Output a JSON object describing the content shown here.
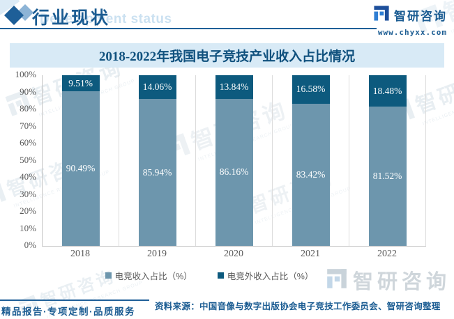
{
  "header": {
    "title": "行业现状",
    "subtitle_watermark": "Development status",
    "brand": {
      "name": "智研咨询",
      "url": "www.chyxx.com"
    }
  },
  "chart": {
    "title": "2018-2022年我国电子竞技产业收入占比情况"
  },
  "chart_data": {
    "type": "bar",
    "stacked": true,
    "title": "2018-2022年我国电子竞技产业收入占比情况",
    "categories": [
      "2018",
      "2019",
      "2020",
      "2021",
      "2022"
    ],
    "series": [
      {
        "name": "电竞收入占比（%）",
        "color": "#6d96ad",
        "values": [
          90.49,
          85.94,
          86.16,
          83.42,
          81.52
        ]
      },
      {
        "name": "电竞外收入占比（%）",
        "color": "#0d5a7e",
        "values": [
          9.51,
          14.06,
          13.84,
          16.58,
          18.48
        ]
      }
    ],
    "ylim": [
      0,
      100
    ],
    "y_ticks": [
      "0%",
      "10%",
      "20%",
      "30%",
      "40%",
      "50%",
      "60%",
      "70%",
      "80%",
      "90%",
      "100%"
    ],
    "xlabel": "",
    "ylabel": "",
    "grid": "vertical-category-separators",
    "legend_position": "bottom",
    "label_format": "two-decimal-percent"
  },
  "footer": {
    "tagline": "精品报告·专项定制·品质服务",
    "source": "资料来源：中国音像与数字出版协会电子竞技工作委员会、智研咨询整理"
  },
  "watermark": {
    "logo_text": "智研咨询",
    "caption": "INTELLIGENCE RESEARCH GROUP"
  },
  "colors": {
    "accent_blue": "#1b5c92",
    "title_blue": "#10517e",
    "banner_bg": "#d8eaf6",
    "series1": "#6d96ad",
    "series2": "#0d5a7e",
    "axis_text": "#595959",
    "logo_dark": "#1d4f9b",
    "logo_light": "#2e7ed3"
  }
}
